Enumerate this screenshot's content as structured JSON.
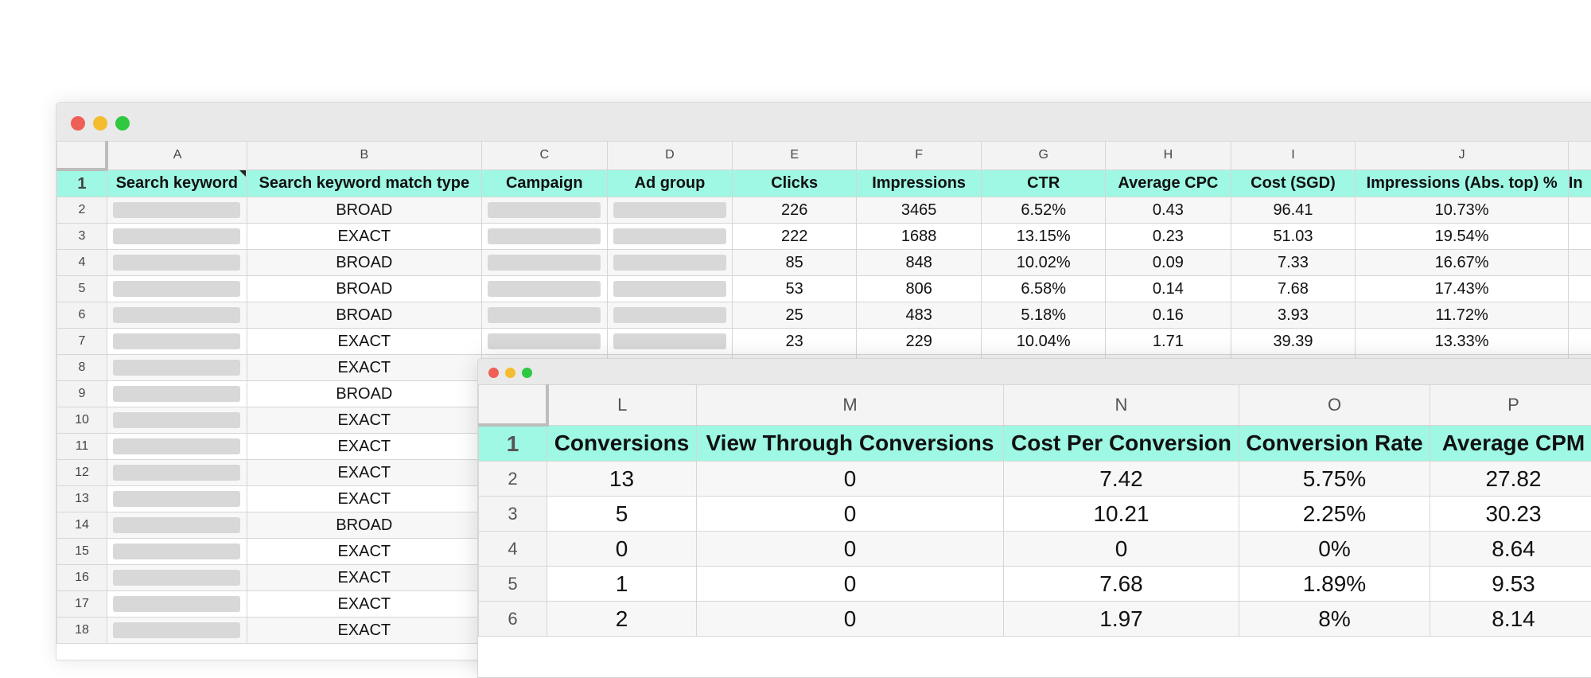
{
  "window_controls": [
    "close",
    "minimize",
    "zoom"
  ],
  "sheet_main": {
    "column_letters": [
      "A",
      "B",
      "C",
      "D",
      "E",
      "F",
      "G",
      "H",
      "I",
      "J"
    ],
    "selected_column": "I",
    "headers": [
      "Search keyword",
      "Search keyword match type",
      "Campaign",
      "Ad group",
      "Clicks",
      "Impressions",
      "CTR",
      "Average CPC",
      "Cost (SGD)",
      "Impressions (Abs. top) %"
    ],
    "overflow_header_fragment": "In",
    "row_numbers": [
      "1",
      "2",
      "3",
      "4",
      "5",
      "6",
      "7",
      "8",
      "9",
      "10",
      "11",
      "12",
      "13",
      "14",
      "15",
      "16",
      "17",
      "18"
    ],
    "rows": [
      {
        "match_type": "BROAD",
        "clicks": "226",
        "impressions": "3465",
        "ctr": "6.52%",
        "avg_cpc": "0.43",
        "cost": "96.41",
        "abs_top": "10.73%"
      },
      {
        "match_type": "EXACT",
        "clicks": "222",
        "impressions": "1688",
        "ctr": "13.15%",
        "avg_cpc": "0.23",
        "cost": "51.03",
        "abs_top": "19.54%"
      },
      {
        "match_type": "BROAD",
        "clicks": "85",
        "impressions": "848",
        "ctr": "10.02%",
        "avg_cpc": "0.09",
        "cost": "7.33",
        "abs_top": "16.67%"
      },
      {
        "match_type": "BROAD",
        "clicks": "53",
        "impressions": "806",
        "ctr": "6.58%",
        "avg_cpc": "0.14",
        "cost": "7.68",
        "abs_top": "17.43%"
      },
      {
        "match_type": "BROAD",
        "clicks": "25",
        "impressions": "483",
        "ctr": "5.18%",
        "avg_cpc": "0.16",
        "cost": "3.93",
        "abs_top": "11.72%"
      },
      {
        "match_type": "EXACT",
        "clicks": "23",
        "impressions": "229",
        "ctr": "10.04%",
        "avg_cpc": "1.71",
        "cost": "39.39",
        "abs_top": "13.33%"
      },
      {
        "match_type": "EXACT"
      },
      {
        "match_type": "BROAD"
      },
      {
        "match_type": "EXACT"
      },
      {
        "match_type": "EXACT"
      },
      {
        "match_type": "EXACT"
      },
      {
        "match_type": "EXACT"
      },
      {
        "match_type": "BROAD"
      },
      {
        "match_type": "EXACT"
      },
      {
        "match_type": "EXACT"
      },
      {
        "match_type": "EXACT"
      },
      {
        "match_type": "EXACT"
      }
    ]
  },
  "sheet_zoom": {
    "column_letters": [
      "L",
      "M",
      "N",
      "O",
      "P"
    ],
    "headers": [
      "Conversions",
      "View Through Conversions",
      "Cost Per Conversion",
      "Conversion Rate",
      "Average CPM"
    ],
    "row_numbers": [
      "1",
      "2",
      "3",
      "4",
      "5",
      "6"
    ],
    "rows": [
      {
        "conversions": "13",
        "view_through": "0",
        "cost_per_conv": "7.42",
        "conv_rate": "5.75%",
        "avg_cpm": "27.82"
      },
      {
        "conversions": "5",
        "view_through": "0",
        "cost_per_conv": "10.21",
        "conv_rate": "2.25%",
        "avg_cpm": "30.23"
      },
      {
        "conversions": "0",
        "view_through": "0",
        "cost_per_conv": "0",
        "conv_rate": "0%",
        "avg_cpm": "8.64"
      },
      {
        "conversions": "1",
        "view_through": "0",
        "cost_per_conv": "7.68",
        "conv_rate": "1.89%",
        "avg_cpm": "9.53"
      },
      {
        "conversions": "2",
        "view_through": "0",
        "cost_per_conv": "1.97",
        "conv_rate": "8%",
        "avg_cpm": "8.14"
      }
    ]
  },
  "colors": {
    "header_fill": "#9ef8e3",
    "titlebar": "#e9e9e9",
    "close": "#ee5f57",
    "minimize": "#f4bc2f",
    "zoom": "#2fc840"
  }
}
